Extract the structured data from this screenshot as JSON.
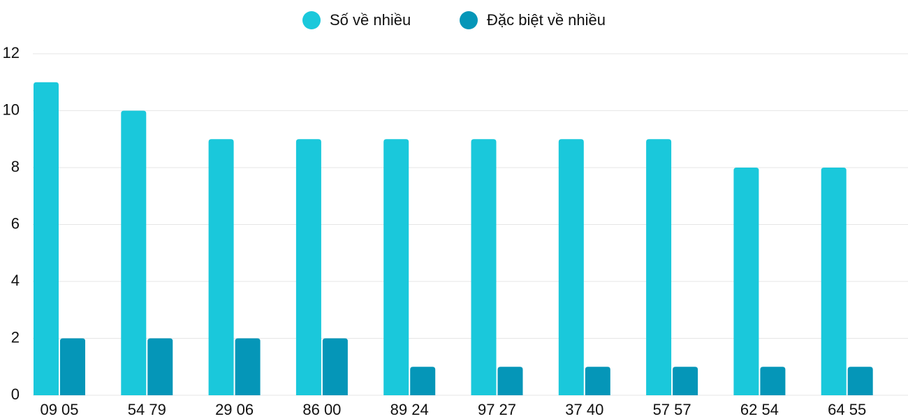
{
  "chart_data": {
    "type": "bar",
    "categories": [
      "09 05",
      "54 79",
      "29 06",
      "86 00",
      "89 24",
      "97 27",
      "37 40",
      "57 57",
      "62 54",
      "64 55"
    ],
    "series": [
      {
        "name": "Số về nhiều",
        "color": "#1ac8db",
        "values": [
          11,
          10,
          9,
          9,
          9,
          9,
          9,
          9,
          8,
          8
        ]
      },
      {
        "name": "Đặc biệt về nhiều",
        "color": "#0596b8",
        "values": [
          2,
          2,
          2,
          2,
          1,
          1,
          1,
          1,
          1,
          1
        ]
      }
    ],
    "ylim": [
      0,
      12
    ],
    "yticks": [
      0,
      2,
      4,
      6,
      8,
      10,
      12
    ],
    "grid": true
  }
}
